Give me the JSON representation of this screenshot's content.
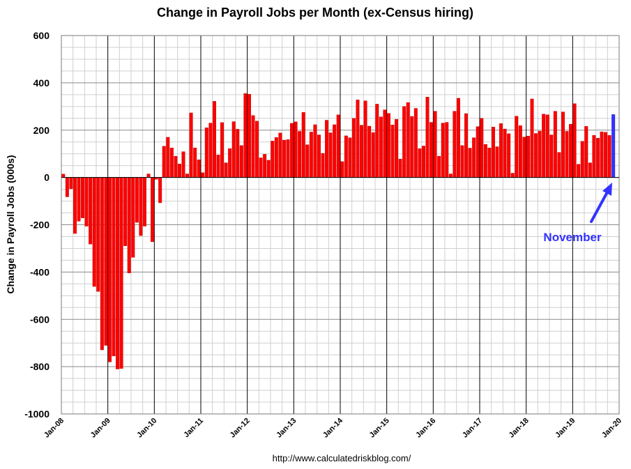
{
  "colors": {
    "bar": "#ff0000",
    "bar_edge": "#b00000",
    "highlight": "#3333ff",
    "grid_minor": "#cfcfcf",
    "grid_major": "#000000"
  },
  "chart_data": {
    "type": "bar",
    "title": "Change in Payroll Jobs per Month (ex-Census hiring)",
    "xlabel": "",
    "ylabel": "Change in Payroll Jobs (000s)",
    "ylim": [
      -1000,
      600
    ],
    "yticks": [
      -1000,
      -800,
      -600,
      -400,
      -200,
      0,
      200,
      400,
      600
    ],
    "xticks": [
      "Jan-08",
      "Jan-09",
      "Jan-10",
      "Jan-11",
      "Jan-12",
      "Jan-13",
      "Jan-14",
      "Jan-15",
      "Jan-16",
      "Jan-17",
      "Jan-18",
      "Jan-19",
      "Jan-20"
    ],
    "start_label": "Jan-08",
    "grid": true,
    "series": [
      {
        "values": [
          14,
          -82,
          -48,
          -237,
          -185,
          -171,
          -206,
          -282,
          -461,
          -482,
          -729,
          -710,
          -780,
          -755,
          -810,
          -808,
          -289,
          -404,
          -338,
          -190,
          -246,
          -206,
          15,
          -272,
          -8,
          -107,
          132,
          170,
          125,
          90,
          57,
          109,
          15,
          273,
          125,
          75,
          20,
          210,
          230,
          322,
          95,
          232,
          62,
          122,
          236,
          204,
          135,
          355,
          352,
          262,
          238,
          83,
          98,
          73,
          154,
          169,
          188,
          158,
          160,
          229,
          235,
          195,
          275,
          138,
          192,
          223,
          180,
          102,
          242,
          189,
          223,
          265,
          67,
          176,
          168,
          250,
          328,
          221,
          324,
          217,
          190,
          310,
          256,
          286,
          271,
          222,
          246,
          78,
          300,
          317,
          258,
          292,
          122,
          133,
          340,
          233,
          280,
          90,
          230,
          233,
          15,
          280,
          335,
          135,
          270,
          124,
          168,
          215,
          250,
          140,
          125,
          213,
          130,
          228,
          205,
          185,
          18,
          259,
          219,
          171,
          175,
          332,
          186,
          196,
          268,
          265,
          180,
          280,
          106,
          277,
          195,
          225,
          312,
          56,
          153,
          216,
          62,
          178,
          166,
          193,
          191,
          178,
          266
        ]
      }
    ],
    "highlight_last": true,
    "annotation": {
      "text": "November"
    }
  },
  "footer": {
    "source": "http://www.calculatedriskblog.com/"
  }
}
